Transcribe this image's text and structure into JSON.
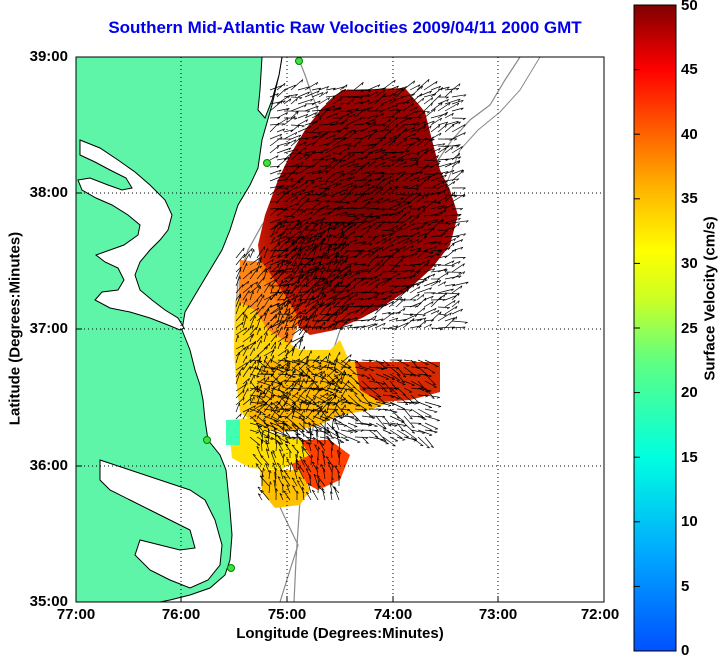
{
  "title": "Southern Mid-Atlantic Raw Velocities 2009/04/11 2000 GMT",
  "x_axis": {
    "label": "Longitude (Degrees:Minutes)",
    "ticks": [
      "77:00",
      "76:00",
      "75:00",
      "74:00",
      "73:00",
      "72:00"
    ]
  },
  "y_axis": {
    "label": "Latitude (Degrees:Minutes)",
    "ticks": [
      "39:00",
      "38:00",
      "37:00",
      "36:00",
      "35:00"
    ]
  },
  "colorbar": {
    "label": "Surface Velocity (cm/s)",
    "ticks": [
      "50",
      "45",
      "40",
      "35",
      "30",
      "25",
      "20",
      "15",
      "10",
      "5",
      "0"
    ],
    "range": [
      0,
      50
    ],
    "scale": "jet"
  },
  "colors": {
    "land": "#5ef5a8",
    "coastline": "#000000",
    "isobath": "#8a8a8a",
    "grid": "#000000",
    "title": "#0000ee"
  },
  "map_extent": {
    "lon": [
      -77,
      -72
    ],
    "lat": [
      35,
      39
    ]
  },
  "grid": "dotted"
}
